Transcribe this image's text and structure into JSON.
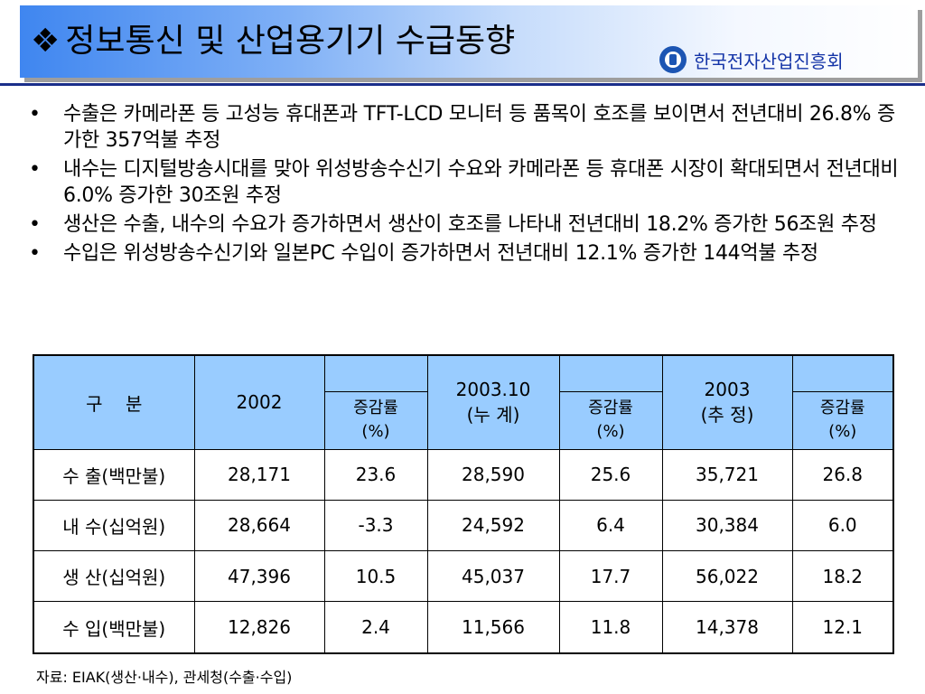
{
  "header": {
    "bullet_symbol": "❖",
    "title": "정보통신 및 산업용기기 수급동향",
    "org_name": "한국전자산업진흥회",
    "logo_icon": "kea-logo-icon"
  },
  "bullets": [
    "수출은 카메라폰  등 고성능 휴대폰과 TFT-LCD 모니터 등 품목이 호조를 보이면서 전년대비 26.8% 증가한 357억불 추정",
    "내수는 디지털방송시대를 맞아 위성방송수신기 수요와 카메라폰 등 휴대폰 시장이 확대되면서 전년대비 6.0% 증가한 30조원 추정",
    "생산은 수출, 내수의 수요가 증가하면서 생산이 호조를 나타내 전년대비 18.2% 증가한 56조원 추정",
    "수입은 위성방송수신기와 일본PC 수입이 증가하면서 전년대비 12.1% 증가한 144억불 추정"
  ],
  "bullet_marker": "•",
  "table": {
    "header": {
      "category": "구    분",
      "y2002": "2002",
      "y2003_10_line1": "2003.10",
      "y2003_10_line2": "(누 계)",
      "y2003_line1": "2003",
      "y2003_line2": "(추 정)",
      "rate_line1": "증감률",
      "rate_line2": "(%)"
    },
    "rows": [
      {
        "label": "수 출(백만불)",
        "v2002": "28,171",
        "r1": "23.6",
        "v2003_10": "28,590",
        "r2": "25.6",
        "v2003": "35,721",
        "r3": "26.8"
      },
      {
        "label": "내 수(십억원)",
        "v2002": "28,664",
        "r1": "-3.3",
        "v2003_10": "24,592",
        "r2": "6.4",
        "v2003": "30,384",
        "r3": "6.0"
      },
      {
        "label": "생 산(십억원)",
        "v2002": "47,396",
        "r1": "10.5",
        "v2003_10": "45,037",
        "r2": "17.7",
        "v2003": "56,022",
        "r3": "18.2"
      },
      {
        "label": "수 입(백만불)",
        "v2002": "12,826",
        "r1": "2.4",
        "v2003_10": "11,566",
        "r2": "11.8",
        "v2003": "14,378",
        "r3": "12.1"
      }
    ]
  },
  "source": "자료: EIAK(생산·내수), 관세청(수출·수입)",
  "colors": {
    "header_gradient_start": "#3f86f0",
    "header_line": "#1a2f8a",
    "org_text": "#1535a8",
    "table_header_bg": "#99ccff"
  }
}
